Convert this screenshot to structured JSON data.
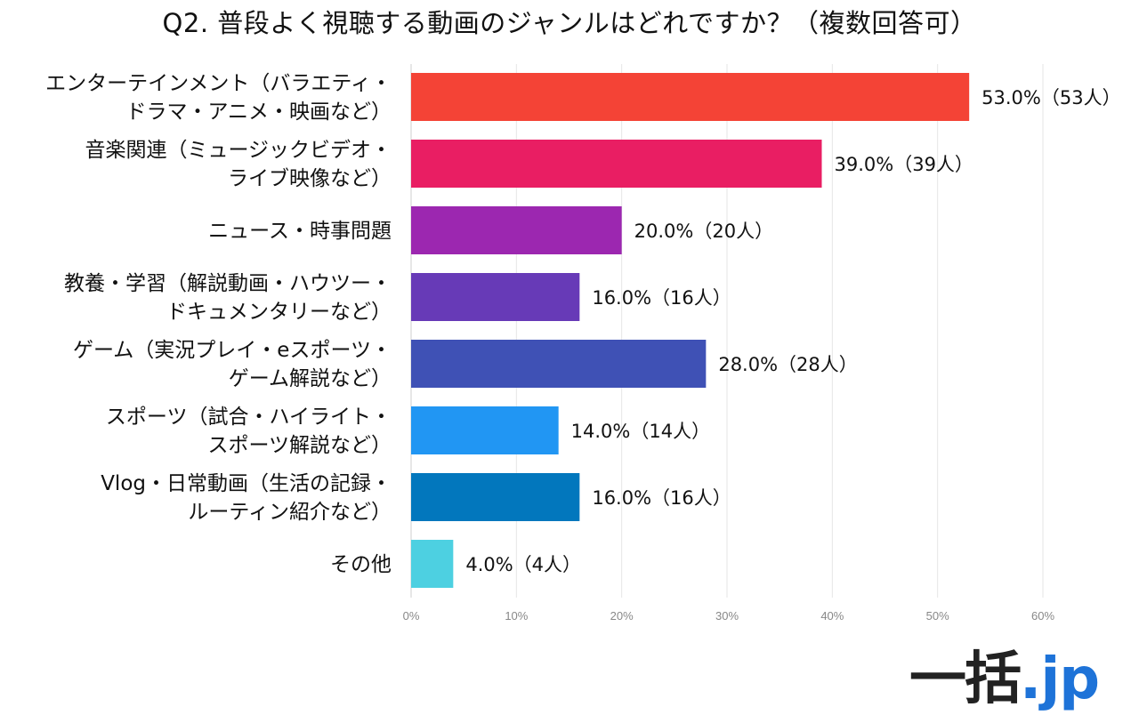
{
  "chart_data": {
    "type": "bar",
    "orientation": "horizontal",
    "title": "Q2. 普段よく視聴する動画のジャンルはどれですか？（複数回答可）",
    "categories": [
      [
        "エンターテインメント（バラエティ・",
        "ドラマ・アニメ・映画など）"
      ],
      [
        "音楽関連（ミュージックビデオ・",
        "ライブ映像など）"
      ],
      [
        "ニュース・時事問題"
      ],
      [
        "教養・学習（解説動画・ハウツー・",
        "ドキュメンタリーなど）"
      ],
      [
        "ゲーム（実況プレイ・eスポーツ・",
        "ゲーム解説など）"
      ],
      [
        "スポーツ（試合・ハイライト・",
        "スポーツ解説など）"
      ],
      [
        "Vlog・日常動画（生活の記録・",
        "ルーティン紹介など）"
      ],
      [
        "その他"
      ]
    ],
    "values": [
      53.0,
      39.0,
      20.0,
      16.0,
      28.0,
      14.0,
      16.0,
      4.0
    ],
    "value_labels": [
      "53.0%（53人）",
      "39.0%（39人）",
      "20.0%（20人）",
      "16.0%（16人）",
      "28.0%（28人）",
      "14.0%（14人）",
      "16.0%（16人）",
      "4.0%（4人）"
    ],
    "colors": [
      "#f44336",
      "#e91e63",
      "#9c27b0",
      "#673ab7",
      "#3f51b5",
      "#2196f3",
      "#0277bd",
      "#4dd0e1"
    ],
    "xlim": [
      0,
      60
    ],
    "xticks": [
      "0%",
      "10%",
      "20%",
      "30%",
      "40%",
      "50%",
      "60%"
    ],
    "grid": true,
    "legend": "none"
  },
  "logo": {
    "main": "一括",
    "suffix": ".jp"
  }
}
